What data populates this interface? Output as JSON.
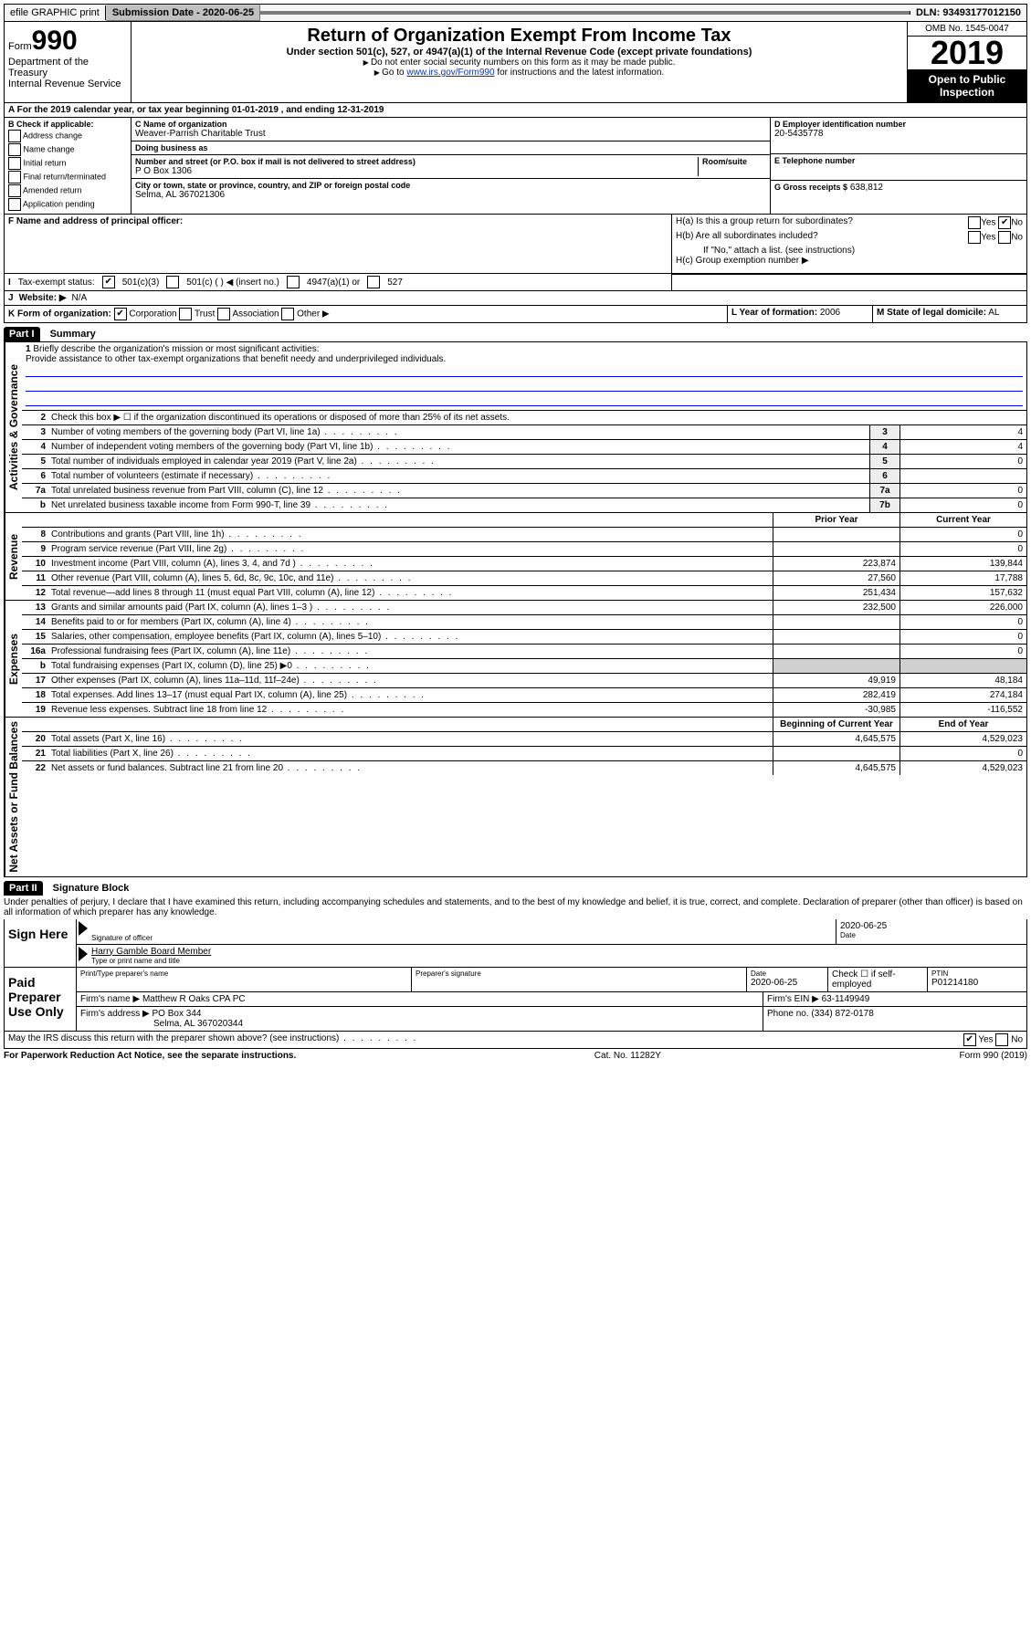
{
  "top_bar": {
    "efile": "efile GRAPHIC print",
    "submission_label": "Submission Date - 2020-06-25",
    "dln": "DLN: 93493177012150"
  },
  "header": {
    "form_prefix": "Form",
    "form_number": "990",
    "dept": "Department of the Treasury",
    "irs": "Internal Revenue Service",
    "title": "Return of Organization Exempt From Income Tax",
    "subtitle": "Under section 501(c), 527, or 4947(a)(1) of the Internal Revenue Code (except private foundations)",
    "note1": "Do not enter social security numbers on this form as it may be made public.",
    "note2_pre": "Go to ",
    "note2_link": "www.irs.gov/Form990",
    "note2_post": " for instructions and the latest information.",
    "omb": "OMB No. 1545-0047",
    "year": "2019",
    "open_public": "Open to Public Inspection"
  },
  "row_a": "For the 2019 calendar year, or tax year beginning 01-01-2019    , and ending 12-31-2019",
  "section_b": {
    "label": "B Check if applicable:",
    "opts": [
      "Address change",
      "Name change",
      "Initial return",
      "Final return/terminated",
      "Amended return",
      "Application pending"
    ]
  },
  "section_c": {
    "name_label": "C Name of organization",
    "name": "Weaver-Parrish Charitable Trust",
    "dba_label": "Doing business as",
    "dba": "",
    "addr_label": "Number and street (or P.O. box if mail is not delivered to street address)",
    "room_label": "Room/suite",
    "addr": "P O Box 1306",
    "city_label": "City or town, state or province, country, and ZIP or foreign postal code",
    "city": "Selma, AL  367021306"
  },
  "section_d": {
    "label": "D Employer identification number",
    "value": "20-5435778"
  },
  "section_e": {
    "label": "E Telephone number",
    "value": ""
  },
  "section_g": {
    "label": "G Gross receipts $",
    "value": "638,812"
  },
  "section_f": {
    "label": "F  Name and address of principal officer:",
    "value": ""
  },
  "section_h": {
    "ha": "H(a)  Is this a group return for subordinates?",
    "ha_no": true,
    "hb": "H(b)  Are all subordinates included?",
    "hb_note": "If \"No,\" attach a list. (see instructions)",
    "hc": "H(c)  Group exemption number ▶"
  },
  "row_i": {
    "label": "Tax-exempt status:",
    "opt1": "501(c)(3)",
    "opt2": "501(c) (   ) ◀ (insert no.)",
    "opt3": "4947(a)(1) or",
    "opt4": "527",
    "checked": "501c3"
  },
  "row_j": {
    "label": "Website: ▶",
    "value": "N/A"
  },
  "row_k": {
    "label": "K Form of organization:",
    "opts": [
      "Corporation",
      "Trust",
      "Association",
      "Other ▶"
    ],
    "checked": "Corporation"
  },
  "row_l": {
    "label": "L Year of formation:",
    "value": "2006"
  },
  "row_m": {
    "label": "M State of legal domicile:",
    "value": "AL"
  },
  "part1": {
    "header": "Part I",
    "title": "Summary",
    "line1_label": "Briefly describe the organization's mission or most significant activities:",
    "line1_text": "Provide assistance to other tax-exempt organizations that benefit needy and underprivileged individuals.",
    "line2": "Check this box ▶ ☐ if the organization discontinued its operations or disposed of more than 25% of its net assets.",
    "sections": {
      "gov": "Activities & Governance",
      "rev": "Revenue",
      "exp": "Expenses",
      "net": "Net Assets or Fund Balances"
    },
    "rows": [
      {
        "n": "3",
        "t": "Number of voting members of the governing body (Part VI, line 1a)",
        "box": "3",
        "v": "4"
      },
      {
        "n": "4",
        "t": "Number of independent voting members of the governing body (Part VI, line 1b)",
        "box": "4",
        "v": "4"
      },
      {
        "n": "5",
        "t": "Total number of individuals employed in calendar year 2019 (Part V, line 2a)",
        "box": "5",
        "v": "0"
      },
      {
        "n": "6",
        "t": "Total number of volunteers (estimate if necessary)",
        "box": "6",
        "v": ""
      },
      {
        "n": "7a",
        "t": "Total unrelated business revenue from Part VIII, column (C), line 12",
        "box": "7a",
        "v": "0"
      },
      {
        "n": "b",
        "t": "Net unrelated business taxable income from Form 990-T, line 39",
        "box": "7b",
        "v": "0"
      }
    ],
    "two_col_header": {
      "prior": "Prior Year",
      "current": "Current Year"
    },
    "rev_rows": [
      {
        "n": "8",
        "t": "Contributions and grants (Part VIII, line 1h)",
        "p": "",
        "c": "0"
      },
      {
        "n": "9",
        "t": "Program service revenue (Part VIII, line 2g)",
        "p": "",
        "c": "0"
      },
      {
        "n": "10",
        "t": "Investment income (Part VIII, column (A), lines 3, 4, and 7d )",
        "p": "223,874",
        "c": "139,844"
      },
      {
        "n": "11",
        "t": "Other revenue (Part VIII, column (A), lines 5, 6d, 8c, 9c, 10c, and 11e)",
        "p": "27,560",
        "c": "17,788"
      },
      {
        "n": "12",
        "t": "Total revenue—add lines 8 through 11 (must equal Part VIII, column (A), line 12)",
        "p": "251,434",
        "c": "157,632"
      }
    ],
    "exp_rows": [
      {
        "n": "13",
        "t": "Grants and similar amounts paid (Part IX, column (A), lines 1–3 )",
        "p": "232,500",
        "c": "226,000"
      },
      {
        "n": "14",
        "t": "Benefits paid to or for members (Part IX, column (A), line 4)",
        "p": "",
        "c": "0"
      },
      {
        "n": "15",
        "t": "Salaries, other compensation, employee benefits (Part IX, column (A), lines 5–10)",
        "p": "",
        "c": "0"
      },
      {
        "n": "16a",
        "t": "Professional fundraising fees (Part IX, column (A), line 11e)",
        "p": "",
        "c": "0"
      },
      {
        "n": "b",
        "t": "Total fundraising expenses (Part IX, column (D), line 25) ▶0",
        "p": "shaded",
        "c": "shaded"
      },
      {
        "n": "17",
        "t": "Other expenses (Part IX, column (A), lines 11a–11d, 11f–24e)",
        "p": "49,919",
        "c": "48,184"
      },
      {
        "n": "18",
        "t": "Total expenses. Add lines 13–17 (must equal Part IX, column (A), line 25)",
        "p": "282,419",
        "c": "274,184"
      },
      {
        "n": "19",
        "t": "Revenue less expenses. Subtract line 18 from line 12",
        "p": "-30,985",
        "c": "-116,552"
      }
    ],
    "net_header": {
      "begin": "Beginning of Current Year",
      "end": "End of Year"
    },
    "net_rows": [
      {
        "n": "20",
        "t": "Total assets (Part X, line 16)",
        "p": "4,645,575",
        "c": "4,529,023"
      },
      {
        "n": "21",
        "t": "Total liabilities (Part X, line 26)",
        "p": "",
        "c": "0"
      },
      {
        "n": "22",
        "t": "Net assets or fund balances. Subtract line 21 from line 20",
        "p": "4,645,575",
        "c": "4,529,023"
      }
    ]
  },
  "part2": {
    "header": "Part II",
    "title": "Signature Block",
    "perjury": "Under penalties of perjury, I declare that I have examined this return, including accompanying schedules and statements, and to the best of my knowledge and belief, it is true, correct, and complete. Declaration of preparer (other than officer) is based on all information of which preparer has any knowledge.",
    "sign_here": "Sign Here",
    "sig_officer": "Signature of officer",
    "sig_date": "2020-06-25",
    "date_label": "Date",
    "officer_name": "Harry Gamble Board Member",
    "name_label": "Type or print name and title",
    "paid": "Paid Preparer Use Only",
    "prep_name_label": "Print/Type preparer's name",
    "prep_name": "",
    "prep_sig_label": "Preparer's signature",
    "prep_date_label": "Date",
    "prep_date": "2020-06-25",
    "check_self": "Check ☐ if self-employed",
    "ptin_label": "PTIN",
    "ptin": "P01214180",
    "firm_name_label": "Firm's name    ▶",
    "firm_name": "Matthew R Oaks CPA PC",
    "firm_ein_label": "Firm's EIN ▶",
    "firm_ein": "63-1149949",
    "firm_addr_label": "Firm's address ▶",
    "firm_addr": "PO Box 344",
    "firm_city": "Selma, AL  367020344",
    "phone_label": "Phone no.",
    "phone": "(334) 872-0178",
    "discuss": "May the IRS discuss this return with the preparer shown above? (see instructions)",
    "discuss_yes": true
  },
  "footer": {
    "paperwork": "For Paperwork Reduction Act Notice, see the separate instructions.",
    "cat": "Cat. No. 11282Y",
    "form": "Form 990 (2019)"
  }
}
